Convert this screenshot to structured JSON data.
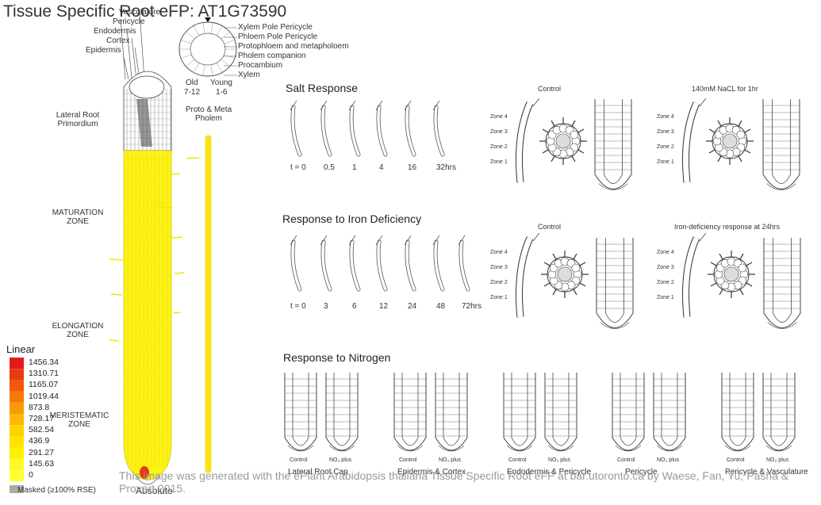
{
  "title": "Tissue Specific Root eFP: AT1G73590",
  "tissue_labels": {
    "vasculature": "Vasculature",
    "pericycle": "Pericycle",
    "endodermis": "Endodermis",
    "cortex": "Cortex",
    "epidermis": "Epidermis",
    "lateral_root_primordium": "Lateral Root Primordium",
    "maturation_zone": "MATURATION ZONE",
    "elongation_zone": "ELONGATION ZONE",
    "meristematic_zone": "MERISTEMATIC ZONE"
  },
  "cross_section_labels": [
    "Xylem Pole Pericycle",
    "Phloem Pole Pericycle",
    "Protophloem and metapholoem",
    "Pholem companion",
    "Procambium",
    "Xylem"
  ],
  "age_labels": {
    "old": "Old",
    "old_range": "7-12",
    "young": "Young",
    "young_range": "1-6"
  },
  "proto_meta": "Proto & Meta Pholem",
  "salt": {
    "title": "Salt Response",
    "times": [
      "t = 0",
      "0.5",
      "1",
      "4",
      "16",
      "32hrs"
    ],
    "control": "Control",
    "treatment": "140mM NaCL for 1hr"
  },
  "iron": {
    "title": "Response to Iron Deficiency",
    "times": [
      "t = 0",
      "3",
      "6",
      "12",
      "24",
      "48",
      "72hrs"
    ],
    "control": "Control",
    "treatment": "Iron-deficiency response at 24hrs"
  },
  "zones": [
    "Zone 4",
    "Zone 3",
    "Zone 2",
    "Zone 1"
  ],
  "nitrogen": {
    "title": "Response to Nitrogen",
    "pair_labels": [
      "Control",
      "NO₃ plus"
    ],
    "groups": [
      "Lateral Root Cap",
      "Epidermis & Cortex",
      "Endodermis & Pericycle",
      "Pericycle",
      "Pericycle & Vasculature"
    ]
  },
  "legend": {
    "title": "Linear",
    "values": [
      "1456.34",
      "1310.71",
      "1165.07",
      "1019.44",
      "873.8",
      "728.17",
      "582.54",
      "436.9",
      "291.27",
      "145.63",
      "0"
    ],
    "colors": [
      "#e31a1c",
      "#ea3a12",
      "#f05a0a",
      "#f57a06",
      "#f99a04",
      "#fcb803",
      "#fdd202",
      "#fde402",
      "#fdf004",
      "#fdf82c",
      "#ffff33"
    ],
    "masked": "Masked (≥100% RSE)",
    "absolute": "Absolute"
  },
  "footer": "This image was generated with the ePlant Arabidopsis thaliana Tissue Specific Root eFP at bar.utoronto.ca by Waese, Fan, Yu, Pasha & Provart 2015."
}
